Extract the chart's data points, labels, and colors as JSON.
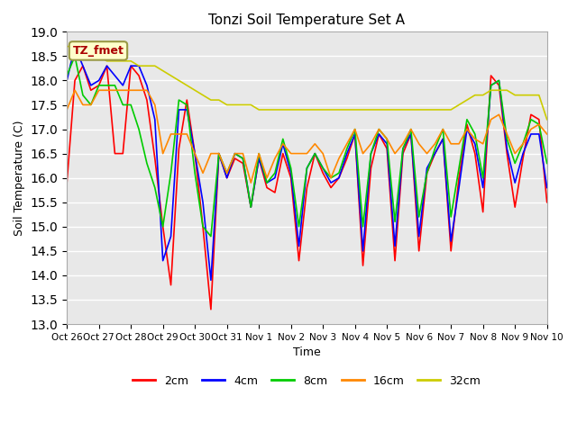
{
  "title": "Tonzi Soil Temperature Set A",
  "xlabel": "Time",
  "ylabel": "Soil Temperature (C)",
  "ylim": [
    13.0,
    19.0
  ],
  "yticks": [
    13.0,
    13.5,
    14.0,
    14.5,
    15.0,
    15.5,
    16.0,
    16.5,
    17.0,
    17.5,
    18.0,
    18.5,
    19.0
  ],
  "xtick_labels": [
    "Oct 26",
    "Oct 27",
    "Oct 28",
    "Oct 29",
    "Oct 30",
    "Oct 31",
    "Nov 1",
    "Nov 2",
    "Nov 3",
    "Nov 4",
    "Nov 5",
    "Nov 6",
    "Nov 7",
    "Nov 8",
    "Nov 9",
    "Nov 10"
  ],
  "colors": {
    "2cm": "#ff0000",
    "4cm": "#0000ff",
    "8cm": "#00cc00",
    "16cm": "#ff8800",
    "32cm": "#cccc00"
  },
  "bg_color": "#e8e8e8",
  "annotation_text": "TZ_fmet",
  "annotation_bg": "#ffffcc",
  "annotation_border": "#999944",
  "data": {
    "2cm": [
      15.9,
      18.0,
      18.3,
      17.8,
      17.9,
      18.3,
      16.5,
      16.5,
      18.3,
      18.1,
      17.6,
      16.4,
      15.0,
      13.8,
      16.6,
      17.6,
      16.5,
      15.0,
      13.3,
      16.5,
      16.0,
      16.4,
      16.3,
      15.4,
      16.4,
      15.8,
      15.7,
      16.5,
      16.0,
      14.3,
      15.8,
      16.5,
      16.1,
      15.8,
      16.0,
      16.4,
      16.9,
      14.2,
      16.2,
      16.9,
      16.6,
      14.3,
      16.5,
      16.9,
      14.5,
      16.1,
      16.5,
      16.8,
      14.5,
      16.0,
      17.1,
      16.5,
      15.3,
      18.1,
      17.9,
      16.5,
      15.4,
      16.4,
      17.3,
      17.2,
      15.5
    ],
    "4cm": [
      18.0,
      18.7,
      18.3,
      17.9,
      18.0,
      18.3,
      18.1,
      17.9,
      18.3,
      18.3,
      17.9,
      17.2,
      14.3,
      14.8,
      17.4,
      17.4,
      16.5,
      15.5,
      13.9,
      16.5,
      16.0,
      16.5,
      16.4,
      15.4,
      16.4,
      15.9,
      16.0,
      16.7,
      16.1,
      14.6,
      16.2,
      16.5,
      16.2,
      15.9,
      16.0,
      16.5,
      16.9,
      14.5,
      16.5,
      16.9,
      16.7,
      14.6,
      16.6,
      16.9,
      14.8,
      16.2,
      16.5,
      16.8,
      14.7,
      15.8,
      17.0,
      16.7,
      15.8,
      17.9,
      18.0,
      16.6,
      15.9,
      16.5,
      16.9,
      16.9,
      15.8
    ],
    "8cm": [
      18.1,
      18.5,
      17.7,
      17.5,
      17.9,
      17.9,
      17.9,
      17.5,
      17.5,
      17.0,
      16.3,
      15.8,
      15.0,
      16.1,
      17.6,
      17.5,
      16.1,
      15.0,
      14.8,
      16.5,
      16.1,
      16.5,
      16.4,
      15.4,
      16.5,
      15.9,
      16.1,
      16.8,
      16.2,
      15.0,
      16.2,
      16.5,
      16.2,
      16.0,
      16.1,
      16.6,
      17.0,
      15.0,
      16.5,
      17.0,
      16.8,
      15.1,
      16.6,
      17.0,
      15.2,
      16.1,
      16.6,
      17.0,
      15.2,
      16.2,
      17.2,
      16.9,
      16.0,
      17.9,
      18.0,
      16.8,
      16.3,
      16.7,
      17.2,
      17.1,
      16.3
    ],
    "16cm": [
      17.4,
      17.8,
      17.5,
      17.5,
      17.8,
      17.8,
      17.8,
      17.8,
      17.8,
      17.8,
      17.8,
      17.5,
      16.5,
      16.9,
      16.9,
      16.9,
      16.5,
      16.1,
      16.5,
      16.5,
      16.1,
      16.5,
      16.5,
      15.9,
      16.5,
      16.0,
      16.4,
      16.7,
      16.5,
      16.5,
      16.5,
      16.7,
      16.5,
      16.0,
      16.4,
      16.7,
      17.0,
      16.5,
      16.7,
      17.0,
      16.8,
      16.5,
      16.7,
      17.0,
      16.7,
      16.5,
      16.7,
      17.0,
      16.7,
      16.7,
      17.0,
      16.8,
      16.7,
      17.2,
      17.3,
      16.9,
      16.5,
      16.7,
      17.0,
      17.1,
      16.9
    ],
    "32cm": [
      18.7,
      18.7,
      18.7,
      18.6,
      18.5,
      18.4,
      18.4,
      18.4,
      18.4,
      18.3,
      18.3,
      18.3,
      18.2,
      18.1,
      18.0,
      17.9,
      17.8,
      17.7,
      17.6,
      17.6,
      17.5,
      17.5,
      17.5,
      17.5,
      17.4,
      17.4,
      17.4,
      17.4,
      17.4,
      17.4,
      17.4,
      17.4,
      17.4,
      17.4,
      17.4,
      17.4,
      17.4,
      17.4,
      17.4,
      17.4,
      17.4,
      17.4,
      17.4,
      17.4,
      17.4,
      17.4,
      17.4,
      17.4,
      17.4,
      17.5,
      17.6,
      17.7,
      17.7,
      17.8,
      17.8,
      17.8,
      17.7,
      17.7,
      17.7,
      17.7,
      17.2
    ]
  }
}
